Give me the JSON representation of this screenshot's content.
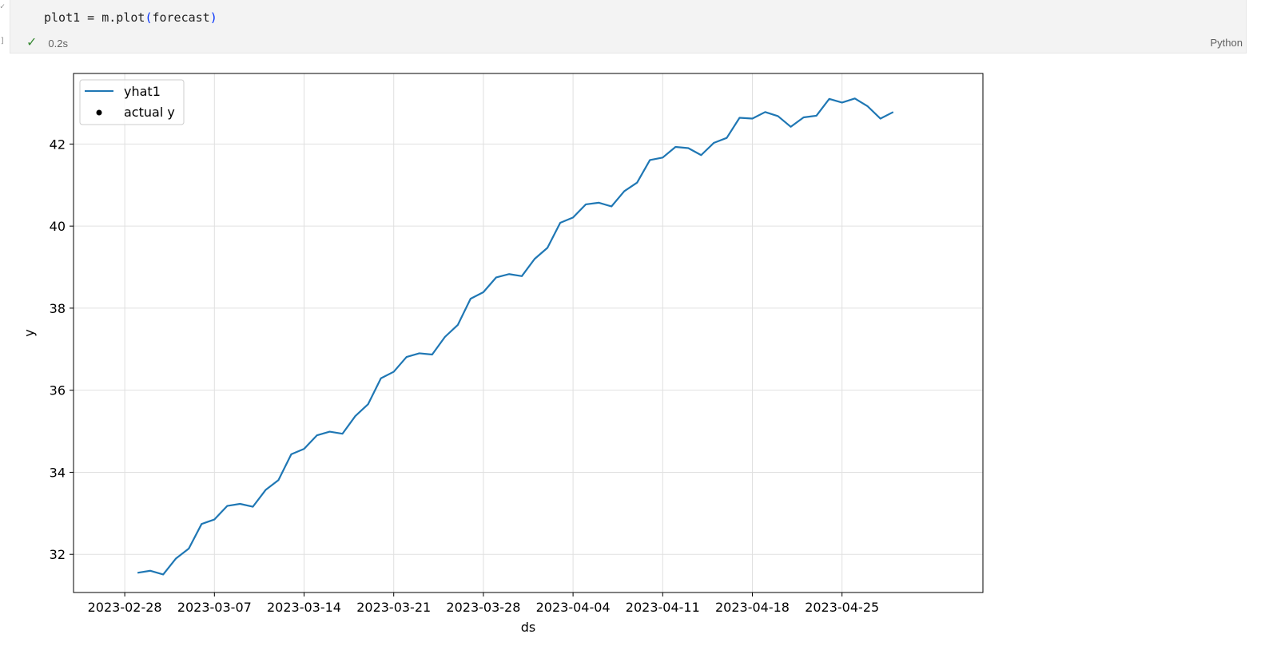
{
  "cell": {
    "code_prefix": "plot1 = m.plot",
    "code_paren_open": "(",
    "code_arg": "forecast",
    "code_paren_close": ")",
    "status_icon": "check-icon",
    "exec_time": "0.2s",
    "language": "Python",
    "gutter_top": "✓",
    "gutter_bracket": "]",
    "success_color": "#388a34"
  },
  "chart_data": {
    "type": "line",
    "title": "",
    "xlabel": "ds",
    "ylabel": "y",
    "x_tick_labels": [
      "2023-02-28",
      "2023-03-07",
      "2023-03-14",
      "2023-03-21",
      "2023-03-28",
      "2023-04-04",
      "2023-04-11",
      "2023-04-18",
      "2023-04-25"
    ],
    "y_ticks": [
      32,
      34,
      36,
      38,
      40,
      42
    ],
    "xlim": [
      "2023-02-24",
      "2023-05-06"
    ],
    "ylim": [
      31.07,
      43.72
    ],
    "grid": true,
    "legend_position": "upper-left",
    "series": [
      {
        "name": "yhat1",
        "color": "#1f77b4",
        "x": [
          "2023-03-01",
          "2023-03-02",
          "2023-03-03",
          "2023-03-04",
          "2023-03-05",
          "2023-03-06",
          "2023-03-07",
          "2023-03-08",
          "2023-03-09",
          "2023-03-10",
          "2023-03-11",
          "2023-03-12",
          "2023-03-13",
          "2023-03-14",
          "2023-03-15",
          "2023-03-16",
          "2023-03-17",
          "2023-03-18",
          "2023-03-19",
          "2023-03-20",
          "2023-03-21",
          "2023-03-22",
          "2023-03-23",
          "2023-03-24",
          "2023-03-25",
          "2023-03-26",
          "2023-03-27",
          "2023-03-28",
          "2023-03-29",
          "2023-03-30",
          "2023-03-31",
          "2023-04-01",
          "2023-04-02",
          "2023-04-03",
          "2023-04-04",
          "2023-04-05",
          "2023-04-06",
          "2023-04-07",
          "2023-04-08",
          "2023-04-09",
          "2023-04-10",
          "2023-04-11",
          "2023-04-12",
          "2023-04-13",
          "2023-04-14",
          "2023-04-15",
          "2023-04-16",
          "2023-04-17",
          "2023-04-18",
          "2023-04-19",
          "2023-04-20",
          "2023-04-21",
          "2023-04-22",
          "2023-04-23",
          "2023-04-24",
          "2023-04-25",
          "2023-04-26",
          "2023-04-27",
          "2023-04-28",
          "2023-04-29",
          "2023-04-30"
        ],
        "y": [
          31.55,
          31.6,
          31.51,
          31.9,
          32.14,
          32.74,
          32.85,
          33.18,
          33.23,
          33.16,
          33.57,
          33.81,
          34.44,
          34.57,
          34.9,
          34.99,
          34.94,
          35.37,
          35.66,
          36.29,
          36.45,
          36.81,
          36.9,
          36.87,
          37.3,
          37.59,
          38.23,
          38.39,
          38.75,
          38.83,
          38.78,
          39.2,
          39.47,
          40.08,
          40.21,
          40.53,
          40.57,
          40.48,
          40.85,
          41.06,
          41.61,
          41.67,
          41.93,
          41.9,
          41.73,
          42.03,
          42.15,
          42.64,
          42.62,
          42.78,
          42.68,
          42.42,
          42.65,
          42.69,
          43.1,
          43.01,
          43.11,
          42.92,
          42.62,
          42.78,
          null
        ]
      },
      {
        "name": "actual y",
        "color": "#000000",
        "x": [],
        "y": []
      }
    ]
  }
}
